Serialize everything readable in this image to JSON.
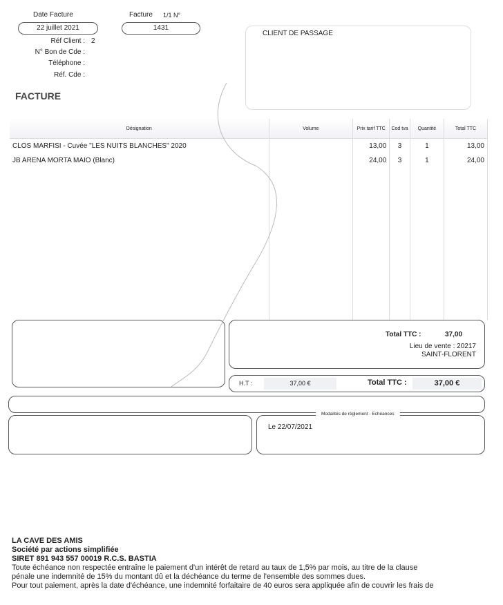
{
  "header": {
    "date_label": "Date Facture",
    "date_value": "22 juillet 2021",
    "invoice_label": "Facture",
    "invoice_page": "1/1 N°",
    "invoice_number": "1431",
    "ref_client_label": "Réf Client :",
    "ref_client_value": "2",
    "bon_cde_label": "N° Bon de Cde :",
    "telephone_label": "Téléphone :",
    "ref_cde_label": "Réf. Cde :",
    "doc_title": "FACTURE"
  },
  "client": {
    "name": "CLIENT DE PASSAGE"
  },
  "table": {
    "headers": [
      "Désignation",
      "Volume",
      "Prix tarif TTC",
      "Cod tva",
      "Quantité",
      "Total TTC"
    ],
    "rows": [
      {
        "designation": "CLOS MARFISI - Cuvée \"LES NUITS BLANCHES\" 2020",
        "volume": "",
        "prix": "13,00",
        "tva": "3",
        "qty": "1",
        "total": "13,00"
      },
      {
        "designation": "JB ARENA MORTA MAIO (Blanc)",
        "volume": "",
        "prix": "24,00",
        "tva": "3",
        "qty": "1",
        "total": "24,00"
      }
    ]
  },
  "totals": {
    "total_ttc_label": "Total TTC :",
    "total_ttc_value": "37,00",
    "lieu_vente": "Lieu de vente : 20217",
    "ville": "SAINT-FLORENT",
    "ht_label": "H.T :",
    "ht_value": "37,00 €",
    "total_ttc_label2": "Total TTC :",
    "total_ttc_value2": "37,00 €"
  },
  "payment": {
    "legend": "Modalités de règlement - Echéances",
    "due": "Le 22/07/2021"
  },
  "footer": {
    "company": "LA CAVE DES AMIS",
    "legal_form": "Société par actions simplifiée",
    "siret": "SIRET 891 943 557 00019 R.C.S. BASTIA",
    "terms1": "Toute échéance non respectée entraîne le paiement d'un intérêt de retard au taux de 1,5% par mois, au titre de la clause",
    "terms2": "pénale une indemnité de 15% du montant dû et la déchéance du terme de l'ensemble des sommes dues.",
    "terms3": "Pour tout paiement, après la date d'échéance, une indemnité forfaitaire de 40 euros sera appliquée afin de couvrir les frais de"
  }
}
